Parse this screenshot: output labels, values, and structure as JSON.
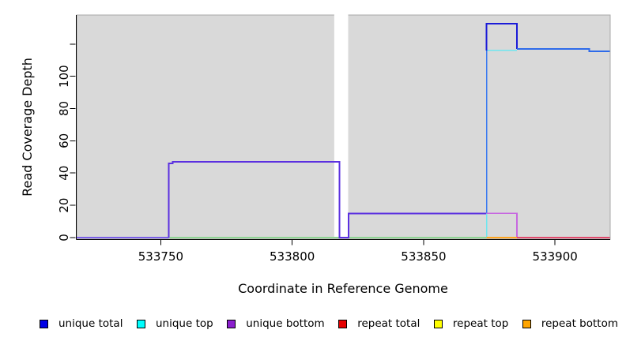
{
  "chart_data": {
    "type": "line",
    "style": "step-coverage-plot",
    "title": "",
    "xlabel": "Coordinate in Reference Genome",
    "ylabel": "Read Coverage Depth",
    "panel_bg": "#D9D9D9",
    "panel_border": "#A8A8A8",
    "axis_color": "#000000",
    "grid": "off",
    "legend_position": "bottom",
    "xlim": [
      533718,
      533921
    ],
    "ylim": [
      -1,
      138
    ],
    "x_ticks": [
      533750,
      533800,
      533850,
      533900
    ],
    "x_tick_labels": [
      "533750",
      "533800",
      "533850",
      "533900"
    ],
    "y_ticks": [
      0,
      20,
      40,
      60,
      80,
      100,
      120
    ],
    "y_tick_labels": [
      "0",
      "20",
      "40",
      "60",
      "80",
      "100",
      ""
    ],
    "gap_region": {
      "x_start": 533816,
      "x_end": 533821.3,
      "fill": "#FFFFFF"
    },
    "series": [
      {
        "name": "unique-total-and-bottom-baseline-left",
        "color": "#7A5FE8",
        "width": 2,
        "points": [
          [
            533718,
            0
          ],
          [
            533753,
            0
          ]
        ]
      },
      {
        "name": "unique-top-and-repeat-top-baseline-blend-green",
        "color": "#8FD694",
        "width": 1.6,
        "points": [
          [
            533753,
            0
          ],
          [
            533874,
            0
          ]
        ]
      },
      {
        "name": "unique-total-and-bottom-plateau-47-then-15",
        "color": "#5B30E0",
        "width": 2,
        "points": [
          [
            533753,
            0
          ],
          [
            533753,
            46
          ],
          [
            533754.5,
            46
          ],
          [
            533754.5,
            47
          ],
          [
            533818,
            47
          ],
          [
            533818,
            0
          ],
          [
            533821.4,
            0
          ],
          [
            533821.4,
            15
          ],
          [
            533874,
            15
          ]
        ]
      },
      {
        "name": "unique-top-rise-at-533874",
        "color": "#6FE6EF",
        "width": 1.6,
        "points": [
          [
            533874,
            0
          ],
          [
            533874,
            116
          ]
        ]
      },
      {
        "name": "unique-top-level-116",
        "color": "#6FE6EF",
        "width": 1.6,
        "points": [
          [
            533874,
            116
          ],
          [
            533885.5,
            116
          ]
        ]
      },
      {
        "name": "unique-total-rise-bright-blue",
        "color": "#3B7BF0",
        "width": 1.8,
        "points": [
          [
            533874,
            15
          ],
          [
            533874,
            116
          ]
        ]
      },
      {
        "name": "unique-total-spike-132",
        "color": "#1B1BD8",
        "width": 2,
        "points": [
          [
            533874,
            116
          ],
          [
            533874,
            132.5
          ],
          [
            533885.5,
            132.5
          ],
          [
            533885.5,
            117
          ]
        ]
      },
      {
        "name": "unique-total-level-117-step-115",
        "color": "#2E6BEA",
        "width": 1.8,
        "points": [
          [
            533885.5,
            117
          ],
          [
            533913,
            117
          ],
          [
            533913,
            115.5
          ],
          [
            533920.8,
            115.5
          ]
        ]
      },
      {
        "name": "unique-bottom-level-15-and-fall",
        "color": "#C768E0",
        "width": 1.6,
        "points": [
          [
            533874,
            15
          ],
          [
            533885.5,
            15
          ],
          [
            533885.5,
            0
          ]
        ]
      },
      {
        "name": "repeat-bottom-baseline-segment",
        "color": "#FFA520",
        "width": 2,
        "points": [
          [
            533874,
            0
          ],
          [
            533885.5,
            0
          ]
        ]
      },
      {
        "name": "repeat-total-baseline-segment",
        "color": "#E24A6D",
        "width": 1.6,
        "points": [
          [
            533885.5,
            0
          ],
          [
            533920.8,
            0
          ]
        ]
      }
    ]
  },
  "legend": {
    "items": [
      {
        "label": "unique total",
        "color": "#0000E6"
      },
      {
        "label": "unique top",
        "color": "#00FFFF"
      },
      {
        "label": "unique bottom",
        "color": "#8B1FCE"
      },
      {
        "label": "repeat total",
        "color": "#E60000"
      },
      {
        "label": "repeat top",
        "color": "#FFFF00"
      },
      {
        "label": "repeat bottom",
        "color": "#FFA500"
      }
    ]
  }
}
